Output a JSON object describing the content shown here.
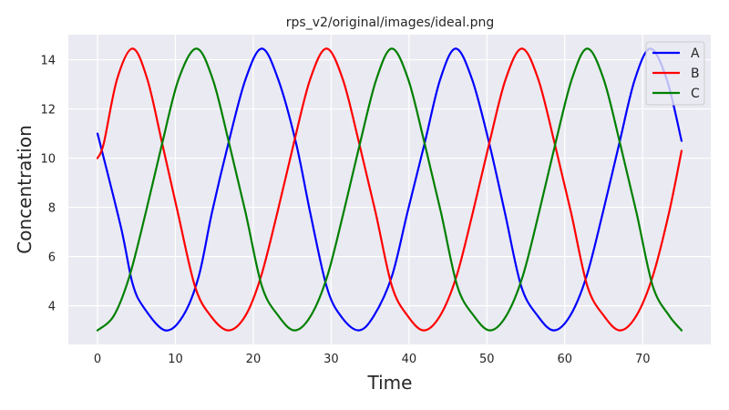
{
  "chart_data": {
    "type": "line",
    "title": "rps_v2/original/images/ideal.png",
    "xlabel": "Time",
    "ylabel": "Concentration",
    "xlim": [
      -3.75,
      78.75
    ],
    "ylim": [
      2.43,
      15.02
    ],
    "xticks": [
      0,
      10,
      20,
      30,
      40,
      50,
      60,
      70
    ],
    "yticks": [
      4,
      6,
      8,
      10,
      12,
      14
    ],
    "grid": true,
    "legend_position": "top-right",
    "series": [
      {
        "name": "A",
        "color": "#0000ff",
        "x": [
          0,
          3,
          4.5,
          6,
          8.7,
          11,
          13,
          14.7,
          16.8,
          19,
          21.1,
          23.2,
          25.5,
          27.3,
          29.4,
          31.2,
          33.5,
          35.5,
          37.8,
          39.8,
          42,
          44,
          46,
          48.1,
          50.3,
          52.3,
          54.4,
          56.5,
          58.6,
          60.7,
          62.8,
          64.9,
          67,
          69,
          71,
          73.1,
          75
        ],
        "y": [
          11,
          7.2,
          4.9,
          3.9,
          3.0,
          3.6,
          5.2,
          7.8,
          10.6,
          13.2,
          14.45,
          13.2,
          10.6,
          7.8,
          4.8,
          3.6,
          3.0,
          3.6,
          5.2,
          7.8,
          10.6,
          13.2,
          14.45,
          13.2,
          10.6,
          7.8,
          4.8,
          3.6,
          3.0,
          3.6,
          5.2,
          7.8,
          10.6,
          13.2,
          14.45,
          13.2,
          10.7
        ]
      },
      {
        "name": "B",
        "color": "#ff0000",
        "x": [
          0,
          0.8,
          2.5,
          4.5,
          6.4,
          8.3,
          10.3,
          12.5,
          14.5,
          16.8,
          19,
          21,
          23.1,
          25.2,
          27.3,
          29.4,
          31.5,
          33.6,
          35.7,
          37.8,
          39.8,
          41.9,
          44,
          46.1,
          48.2,
          50.3,
          52.4,
          54.5,
          56.6,
          58.7,
          60.8,
          62.9,
          65,
          67.1,
          69.2,
          71.3,
          73.4,
          75
        ],
        "y": [
          10,
          10.6,
          13.2,
          14.45,
          13.2,
          10.6,
          7.8,
          4.8,
          3.6,
          3.0,
          3.6,
          5.2,
          7.8,
          10.6,
          13.2,
          14.45,
          13.2,
          10.6,
          7.8,
          4.8,
          3.6,
          3.0,
          3.6,
          5.2,
          7.8,
          10.6,
          13.2,
          14.45,
          13.2,
          10.6,
          7.8,
          4.8,
          3.6,
          3.0,
          3.6,
          5.2,
          7.8,
          10.3
        ]
      },
      {
        "name": "C",
        "color": "#008000",
        "x": [
          0,
          2.1,
          4.1,
          6.2,
          8.3,
          10.4,
          12.7,
          14.8,
          16.9,
          19,
          21.1,
          23.2,
          25.3,
          27.4,
          29.5,
          31.6,
          33.7,
          35.8,
          37.8,
          39.9,
          42,
          44.1,
          46.2,
          48.3,
          50.4,
          52.5,
          54.6,
          56.7,
          58.8,
          60.9,
          62.9,
          65,
          67.1,
          69.2,
          71.3,
          73.4,
          75
        ],
        "y": [
          3.0,
          3.6,
          5.2,
          7.8,
          10.6,
          13.2,
          14.45,
          13.2,
          10.6,
          7.8,
          4.8,
          3.6,
          3.0,
          3.6,
          5.2,
          7.8,
          10.6,
          13.2,
          14.45,
          13.2,
          10.6,
          7.8,
          4.8,
          3.6,
          3.0,
          3.6,
          5.2,
          7.8,
          10.6,
          13.2,
          14.45,
          13.2,
          10.6,
          7.8,
          4.8,
          3.6,
          3.0
        ]
      }
    ]
  },
  "colors": {
    "plot_background": "#eaeaf2",
    "grid": "#ffffff",
    "text": "#262626"
  }
}
